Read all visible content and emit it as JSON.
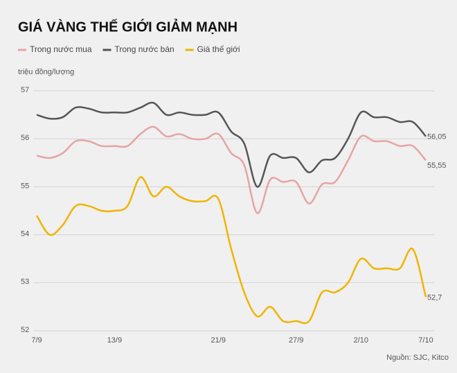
{
  "chart_data": {
    "type": "line",
    "title": "GIÁ VÀNG THẾ GIỚI GIẢM MẠNH",
    "y_label": "triệu đồng/lượng",
    "source": "Nguồn: SJC, Kitco",
    "categories": [
      "7/9",
      null,
      null,
      null,
      null,
      null,
      "13/9",
      null,
      null,
      null,
      null,
      null,
      null,
      null,
      "21/9",
      null,
      null,
      null,
      null,
      null,
      "27/9",
      null,
      null,
      null,
      null,
      "2/10",
      null,
      null,
      null,
      null,
      "7/10"
    ],
    "ylim": [
      52,
      57
    ],
    "yticks": [
      52,
      53,
      54,
      55,
      56,
      57
    ],
    "grid": true,
    "series": [
      {
        "name": "Trong nước mua",
        "color": "#e8a3a3",
        "values": [
          55.65,
          55.6,
          55.7,
          55.95,
          55.95,
          55.85,
          55.85,
          55.85,
          56.1,
          56.25,
          56.05,
          56.1,
          56.0,
          56.0,
          56.1,
          55.7,
          55.45,
          54.45,
          55.15,
          55.1,
          55.1,
          54.65,
          55.05,
          55.1,
          55.55,
          56.05,
          55.95,
          55.95,
          55.85,
          55.85,
          55.55
        ],
        "value_labels": [
          null,
          null,
          null,
          null,
          null,
          null,
          null,
          null,
          null,
          null,
          null,
          null,
          null,
          null,
          null,
          null,
          null,
          null,
          null,
          null,
          null,
          null,
          null,
          null,
          null,
          null,
          null,
          null,
          null,
          null,
          "55,55"
        ]
      },
      {
        "name": "Trong nước bán",
        "color": "#555555",
        "values": [
          56.5,
          56.42,
          56.45,
          56.65,
          56.63,
          56.55,
          56.55,
          56.55,
          56.65,
          56.75,
          56.5,
          56.55,
          56.5,
          56.5,
          56.55,
          56.15,
          55.9,
          55.0,
          55.65,
          55.6,
          55.6,
          55.3,
          55.55,
          55.6,
          56.0,
          56.55,
          56.45,
          56.45,
          56.35,
          56.35,
          56.05
        ],
        "value_labels": [
          null,
          null,
          null,
          null,
          null,
          null,
          null,
          null,
          null,
          null,
          null,
          null,
          null,
          null,
          null,
          null,
          null,
          null,
          null,
          null,
          null,
          null,
          null,
          null,
          null,
          null,
          null,
          null,
          null,
          null,
          "56,05"
        ]
      },
      {
        "name": "Giá thế giới",
        "color": "#f0b400",
        "values": [
          54.4,
          54.0,
          54.2,
          54.6,
          54.6,
          54.5,
          54.5,
          54.6,
          55.2,
          54.8,
          55.0,
          54.8,
          54.7,
          54.7,
          54.75,
          53.7,
          52.8,
          52.3,
          52.5,
          52.2,
          52.2,
          52.2,
          52.8,
          52.8,
          53.0,
          53.5,
          53.3,
          53.3,
          53.3,
          53.7,
          52.7
        ],
        "value_labels": [
          null,
          null,
          null,
          null,
          null,
          null,
          null,
          null,
          null,
          null,
          null,
          null,
          null,
          null,
          null,
          null,
          null,
          null,
          null,
          null,
          null,
          null,
          null,
          null,
          null,
          null,
          null,
          null,
          null,
          null,
          "52,7"
        ]
      }
    ]
  }
}
